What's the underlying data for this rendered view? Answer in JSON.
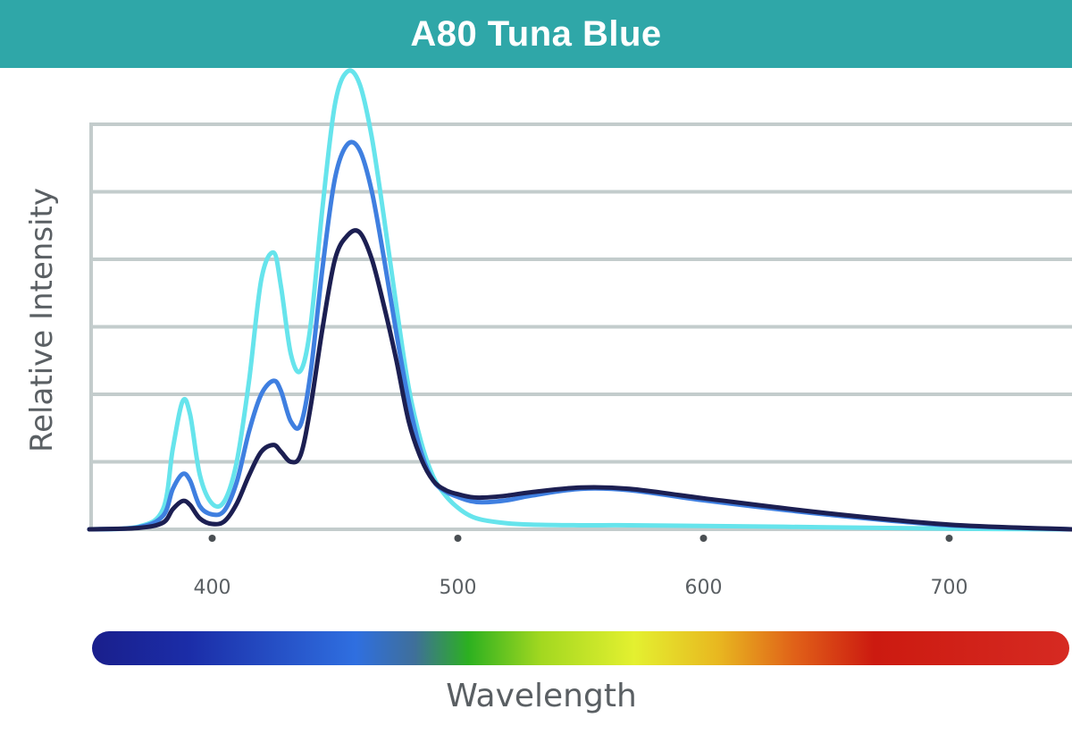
{
  "colors": {
    "title_bar": "#2fa7a8",
    "grid": "#c3cccc",
    "tick_dot": "#4a4f53",
    "text": "#5a5f63"
  },
  "chart_data": {
    "type": "line",
    "title": "A80 Tuna Blue",
    "xlabel": "Wavelength",
    "ylabel": "Relative Intensity",
    "xlim": [
      350,
      750
    ],
    "ylim": [
      0,
      6
    ],
    "x_ticks": [
      400,
      500,
      600,
      700
    ],
    "x_tick_labels": [
      "400",
      "500",
      "600",
      "700"
    ],
    "y_gridlines": [
      1,
      2,
      3,
      4,
      5,
      6
    ],
    "grid": true,
    "legend": "none",
    "spectrum_bar": {
      "gradient_stops": [
        {
          "offset": 0.0,
          "color": "#1a1f8c"
        },
        {
          "offset": 0.1,
          "color": "#1b2da8"
        },
        {
          "offset": 0.27,
          "color": "#2f6fe0"
        },
        {
          "offset": 0.33,
          "color": "#3f6f9a"
        },
        {
          "offset": 0.385,
          "color": "#2cb020"
        },
        {
          "offset": 0.46,
          "color": "#a3d820"
        },
        {
          "offset": 0.555,
          "color": "#e4f030"
        },
        {
          "offset": 0.64,
          "color": "#e8b820"
        },
        {
          "offset": 0.72,
          "color": "#e06018"
        },
        {
          "offset": 0.8,
          "color": "#cc1a10"
        },
        {
          "offset": 1.0,
          "color": "#d62a22"
        }
      ]
    },
    "series": [
      {
        "color": "#66e4ec",
        "x": [
          350,
          370,
          380,
          384,
          388,
          391,
          395,
          400,
          405,
          410,
          415,
          420,
          425,
          428,
          432,
          436,
          440,
          445,
          450,
          455,
          460,
          465,
          470,
          475,
          480,
          485,
          490,
          495,
          500,
          505,
          510,
          520,
          530,
          550,
          570,
          600,
          650,
          700,
          750
        ],
        "y": [
          0.0,
          0.04,
          0.3,
          1.2,
          1.9,
          1.7,
          0.8,
          0.38,
          0.42,
          1.0,
          2.2,
          3.7,
          4.1,
          3.6,
          2.6,
          2.35,
          3.0,
          4.8,
          6.3,
          6.78,
          6.6,
          5.8,
          4.6,
          3.3,
          2.1,
          1.3,
          0.78,
          0.5,
          0.32,
          0.2,
          0.14,
          0.09,
          0.07,
          0.06,
          0.06,
          0.05,
          0.03,
          0.01,
          0.0
        ]
      },
      {
        "color": "#3f7fe0",
        "x": [
          350,
          370,
          380,
          384,
          388,
          391,
          395,
          400,
          405,
          410,
          415,
          420,
          425,
          428,
          432,
          436,
          440,
          445,
          450,
          455,
          460,
          465,
          470,
          475,
          480,
          485,
          490,
          495,
          500,
          505,
          510,
          520,
          530,
          550,
          570,
          600,
          650,
          700,
          750
        ],
        "y": [
          0.0,
          0.03,
          0.2,
          0.6,
          0.82,
          0.72,
          0.34,
          0.22,
          0.28,
          0.7,
          1.45,
          2.0,
          2.2,
          2.05,
          1.6,
          1.55,
          2.3,
          3.9,
          5.2,
          5.7,
          5.62,
          5.0,
          4.0,
          2.9,
          1.9,
          1.15,
          0.72,
          0.56,
          0.48,
          0.42,
          0.4,
          0.43,
          0.5,
          0.6,
          0.58,
          0.43,
          0.22,
          0.06,
          0.0
        ]
      },
      {
        "color": "#1c1f52",
        "x": [
          350,
          370,
          380,
          384,
          388,
          391,
          395,
          400,
          405,
          410,
          415,
          420,
          425,
          428,
          432,
          436,
          440,
          445,
          450,
          455,
          460,
          465,
          470,
          475,
          480,
          485,
          490,
          495,
          500,
          505,
          510,
          520,
          530,
          550,
          570,
          600,
          650,
          700,
          750
        ],
        "y": [
          0.0,
          0.02,
          0.1,
          0.3,
          0.42,
          0.36,
          0.16,
          0.08,
          0.12,
          0.38,
          0.8,
          1.15,
          1.25,
          1.15,
          1.0,
          1.1,
          1.8,
          3.0,
          4.0,
          4.35,
          4.4,
          4.0,
          3.3,
          2.5,
          1.6,
          1.05,
          0.72,
          0.58,
          0.52,
          0.48,
          0.47,
          0.5,
          0.55,
          0.62,
          0.6,
          0.46,
          0.24,
          0.07,
          0.0
        ]
      }
    ]
  }
}
